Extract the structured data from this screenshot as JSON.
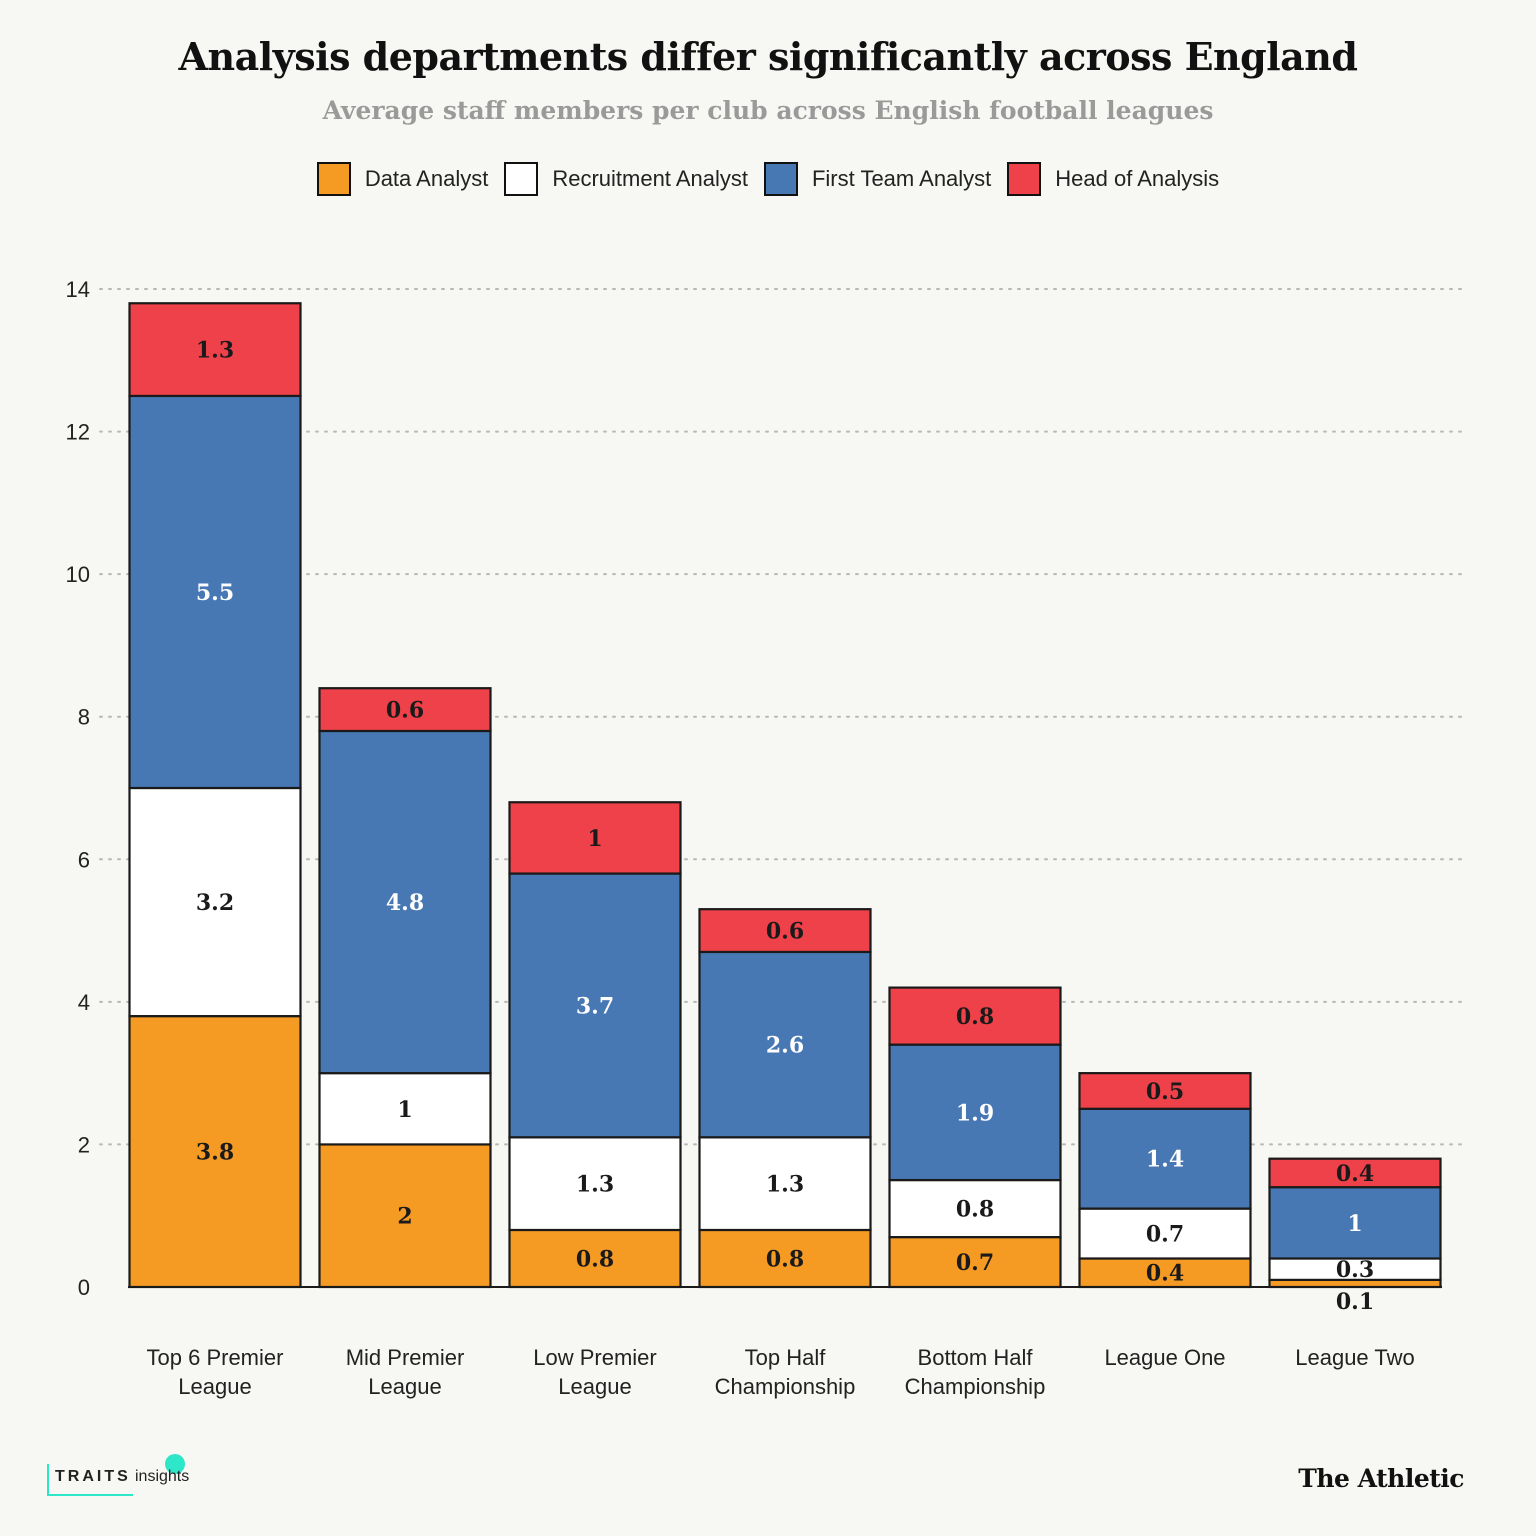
{
  "title": "Analysis departments differ significantly across England",
  "subtitle": "Average staff members per club across English football leagues",
  "legend": [
    {
      "label": "Data Analyst",
      "color": "#f59a23"
    },
    {
      "label": "Recruitment Analyst",
      "color": "#ffffff"
    },
    {
      "label": "First Team Analyst",
      "color": "#4878b4"
    },
    {
      "label": "Head of Analysis",
      "color": "#ee4149"
    }
  ],
  "footer": {
    "logo_traits": "TRAITS",
    "logo_insights": "insights",
    "brand": "The Athletic"
  },
  "chart_data": {
    "type": "bar",
    "stacked": true,
    "title": "Analysis departments differ significantly across England",
    "subtitle": "Average staff members per club across English football leagues",
    "xlabel": "",
    "ylabel": "",
    "ylim": [
      0,
      14
    ],
    "yticks": [
      0,
      2,
      4,
      6,
      8,
      10,
      12,
      14
    ],
    "grid": "horizontal dotted",
    "legend_position": "top",
    "categories": [
      [
        "Top 6 Premier",
        "League"
      ],
      [
        "Mid Premier",
        "League"
      ],
      [
        "Low Premier",
        "League"
      ],
      [
        "Top Half",
        "Championship"
      ],
      [
        "Bottom Half",
        "Championship"
      ],
      [
        "League One"
      ],
      [
        "League Two"
      ]
    ],
    "series": [
      {
        "name": "Data Analyst",
        "color": "#f59a23",
        "label_color": "#1a1a1a",
        "values": [
          3.8,
          2,
          0.8,
          0.8,
          0.7,
          0.4,
          0.1
        ]
      },
      {
        "name": "Recruitment Analyst",
        "color": "#ffffff",
        "label_color": "#1a1a1a",
        "values": [
          3.2,
          1,
          1.3,
          1.3,
          0.8,
          0.7,
          0.3
        ]
      },
      {
        "name": "First Team Analyst",
        "color": "#4878b4",
        "label_color": "#ffffff",
        "values": [
          5.5,
          4.8,
          3.7,
          2.6,
          1.9,
          1.4,
          1
        ]
      },
      {
        "name": "Head of Analysis",
        "color": "#ee4149",
        "label_color": "#1a1a1a",
        "values": [
          1.3,
          0.6,
          1,
          0.6,
          0.8,
          0.5,
          0.4
        ]
      }
    ]
  }
}
